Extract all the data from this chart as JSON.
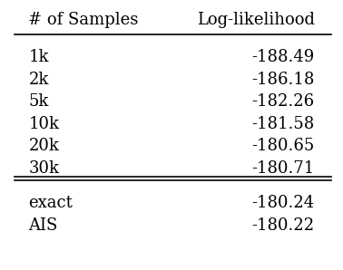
{
  "col1_header": "# of Samples",
  "col2_header": "Log-likelihood",
  "rows_main": [
    [
      "1k",
      "-188.49"
    ],
    [
      "2k",
      "-186.18"
    ],
    [
      "5k",
      "-182.26"
    ],
    [
      "10k",
      "-181.58"
    ],
    [
      "20k",
      "-180.65"
    ],
    [
      "30k",
      "-180.71"
    ]
  ],
  "rows_extra": [
    [
      "exact",
      "-180.24"
    ],
    [
      "AIS",
      "-180.22"
    ]
  ],
  "font_size": 13,
  "font_family": "DejaVu Serif"
}
